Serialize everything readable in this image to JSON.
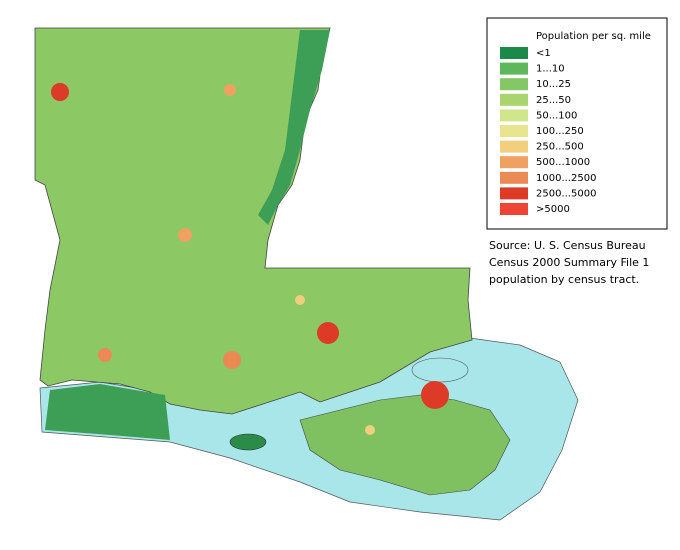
{
  "legend": {
    "title": "Population per sq. mile",
    "items": [
      {
        "label": "<1",
        "color": "#1a8a4a"
      },
      {
        "label": "1...10",
        "color": "#5cb85a"
      },
      {
        "label": "10...25",
        "color": "#86c765"
      },
      {
        "label": "25...50",
        "color": "#aad56e"
      },
      {
        "label": "50...100",
        "color": "#cfe68a"
      },
      {
        "label": "100...250",
        "color": "#e9e58e"
      },
      {
        "label": "250...500",
        "color": "#f2cf7e"
      },
      {
        "label": "500...1000",
        "color": "#f0a060"
      },
      {
        "label": "1000...2500",
        "color": "#eb8a55"
      },
      {
        "label": "2500...5000",
        "color": "#dd3a28"
      },
      {
        "label": ">5000",
        "color": "#ee4433"
      }
    ]
  },
  "source": [
    "Source: U. S. Census Bureau",
    "Census 2000 Summary File 1",
    "population by census tract."
  ]
}
